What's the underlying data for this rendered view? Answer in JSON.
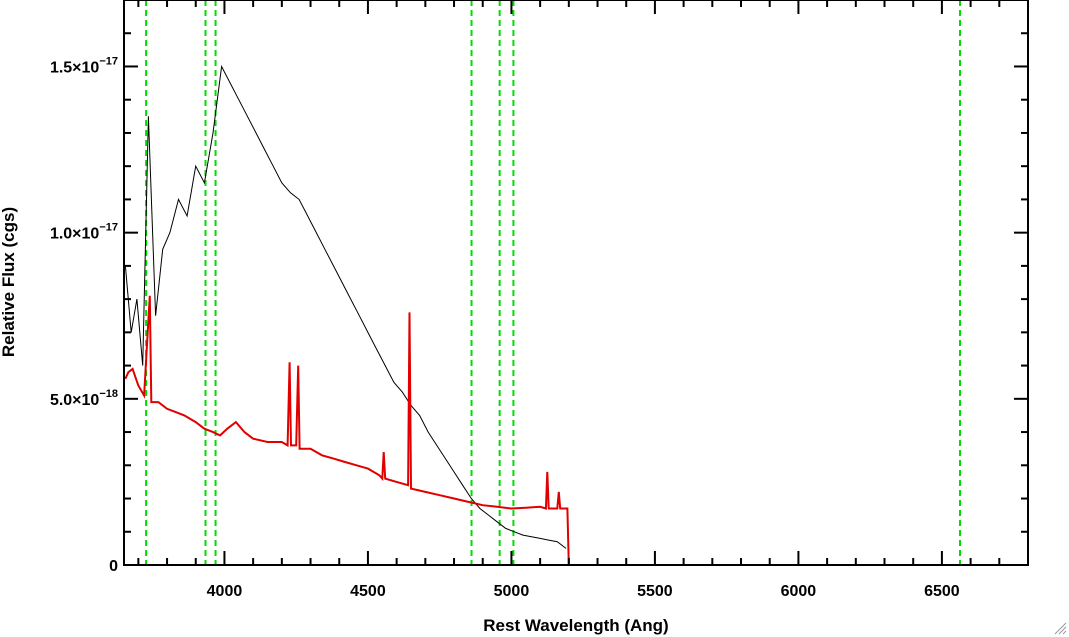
{
  "chart_data": {
    "type": "line",
    "title": "",
    "xlabel": "Rest Wavelength (Ang)",
    "ylabel": "Relative Flux (cgs)",
    "xlim": [
      3650,
      6800
    ],
    "ylim": [
      0,
      1.7e-17
    ],
    "x_ticks": [
      {
        "value": 4000,
        "label": "4000"
      },
      {
        "value": 4500,
        "label": "4500"
      },
      {
        "value": 5000,
        "label": "5000"
      },
      {
        "value": 5500,
        "label": "5500"
      },
      {
        "value": 6000,
        "label": "6000"
      },
      {
        "value": 6500,
        "label": "6500"
      }
    ],
    "y_ticks": [
      {
        "value": 0,
        "mantissa": "0",
        "exponent": ""
      },
      {
        "value": 5e-18,
        "mantissa": "5.0×10",
        "exponent": "−18"
      },
      {
        "value": 1e-17,
        "mantissa": "1.0×10",
        "exponent": "−17"
      },
      {
        "value": 1.5e-17,
        "mantissa": "1.5×10",
        "exponent": "−17"
      }
    ],
    "reference_lines_x": [
      3727,
      3934,
      3969,
      4861,
      4959,
      5007,
      6563
    ],
    "colors": {
      "observed": "#000000",
      "template": "#e00000",
      "reference": "#00dd00"
    },
    "series": [
      {
        "key": "observed",
        "points": [
          [
            3655,
            9e-18
          ],
          [
            3675,
            7e-18
          ],
          [
            3695,
            8e-18
          ],
          [
            3715,
            6e-18
          ],
          [
            3735,
            1.35e-17
          ],
          [
            3760,
            7.5e-18
          ],
          [
            3785,
            9.5e-18
          ],
          [
            3810,
            1e-17
          ],
          [
            3840,
            1.1e-17
          ],
          [
            3870,
            1.05e-17
          ],
          [
            3900,
            1.2e-17
          ],
          [
            3930,
            1.15e-17
          ],
          [
            3960,
            1.3e-17
          ],
          [
            3990,
            1.5e-17
          ],
          [
            4020,
            1.45e-17
          ],
          [
            4050,
            1.4e-17
          ],
          [
            4080,
            1.35e-17
          ],
          [
            4110,
            1.3e-17
          ],
          [
            4140,
            1.25e-17
          ],
          [
            4170,
            1.2e-17
          ],
          [
            4200,
            1.15e-17
          ],
          [
            4230,
            1.12e-17
          ],
          [
            4260,
            1.1e-17
          ],
          [
            4290,
            1.05e-17
          ],
          [
            4320,
            1e-17
          ],
          [
            4350,
            9.5e-18
          ],
          [
            4380,
            9e-18
          ],
          [
            4410,
            8.5e-18
          ],
          [
            4440,
            8e-18
          ],
          [
            4470,
            7.5e-18
          ],
          [
            4500,
            7e-18
          ],
          [
            4530,
            6.5e-18
          ],
          [
            4560,
            6e-18
          ],
          [
            4590,
            5.5e-18
          ],
          [
            4620,
            5.2e-18
          ],
          [
            4650,
            4.8e-18
          ],
          [
            4680,
            4.5e-18
          ],
          [
            4710,
            4e-18
          ],
          [
            4740,
            3.6e-18
          ],
          [
            4770,
            3.2e-18
          ],
          [
            4800,
            2.8e-18
          ],
          [
            4830,
            2.4e-18
          ],
          [
            4860,
            2e-18
          ],
          [
            4890,
            1.7e-18
          ],
          [
            4920,
            1.5e-18
          ],
          [
            4950,
            1.3e-18
          ],
          [
            4980,
            1.1e-18
          ],
          [
            5010,
            1e-18
          ],
          [
            5040,
            9e-19
          ],
          [
            5070,
            8.5e-19
          ],
          [
            5100,
            8e-19
          ],
          [
            5130,
            7.5e-19
          ],
          [
            5160,
            7e-19
          ],
          [
            5190,
            5e-19
          ]
        ]
      },
      {
        "key": "template",
        "points": [
          [
            3655,
            5.6e-18
          ],
          [
            3665,
            5.8e-18
          ],
          [
            3680,
            5.9e-18
          ],
          [
            3700,
            5.4e-18
          ],
          [
            3720,
            5.1e-18
          ],
          [
            3740,
            8.1e-18
          ],
          [
            3745,
            4.9e-18
          ],
          [
            3770,
            4.9e-18
          ],
          [
            3800,
            4.7e-18
          ],
          [
            3830,
            4.6e-18
          ],
          [
            3860,
            4.5e-18
          ],
          [
            3900,
            4.3e-18
          ],
          [
            3930,
            4.1e-18
          ],
          [
            3960,
            4e-18
          ],
          [
            3985,
            3.9e-18
          ],
          [
            4010,
            4.1e-18
          ],
          [
            4040,
            4.3e-18
          ],
          [
            4070,
            4e-18
          ],
          [
            4100,
            3.8e-18
          ],
          [
            4150,
            3.7e-18
          ],
          [
            4200,
            3.7e-18
          ],
          [
            4220,
            3.6e-18
          ],
          [
            4227,
            6.1e-18
          ],
          [
            4232,
            3.6e-18
          ],
          [
            4250,
            3.6e-18
          ],
          [
            4257,
            6e-18
          ],
          [
            4262,
            3.5e-18
          ],
          [
            4300,
            3.5e-18
          ],
          [
            4340,
            3.3e-18
          ],
          [
            4380,
            3.2e-18
          ],
          [
            4420,
            3.1e-18
          ],
          [
            4460,
            3e-18
          ],
          [
            4500,
            2.9e-18
          ],
          [
            4540,
            2.7e-18
          ],
          [
            4550,
            2.6e-18
          ],
          [
            4555,
            3.4e-18
          ],
          [
            4560,
            2.6e-18
          ],
          [
            4600,
            2.5e-18
          ],
          [
            4640,
            2.4e-18
          ],
          [
            4645,
            7.6e-18
          ],
          [
            4650,
            2.3e-18
          ],
          [
            4700,
            2.2e-18
          ],
          [
            4750,
            2.1e-18
          ],
          [
            4800,
            2e-18
          ],
          [
            4850,
            1.9e-18
          ],
          [
            4900,
            1.8e-18
          ],
          [
            4950,
            1.75e-18
          ],
          [
            5000,
            1.7e-18
          ],
          [
            5050,
            1.72e-18
          ],
          [
            5100,
            1.75e-18
          ],
          [
            5120,
            1.7e-18
          ],
          [
            5125,
            2.8e-18
          ],
          [
            5130,
            1.7e-18
          ],
          [
            5160,
            1.7e-18
          ],
          [
            5165,
            2.2e-18
          ],
          [
            5170,
            1.7e-18
          ],
          [
            5195,
            1.7e-18
          ],
          [
            5200,
            0
          ],
          [
            5600,
            0
          ],
          [
            6000,
            0
          ],
          [
            6400,
            0
          ],
          [
            6800,
            0
          ]
        ]
      }
    ]
  }
}
